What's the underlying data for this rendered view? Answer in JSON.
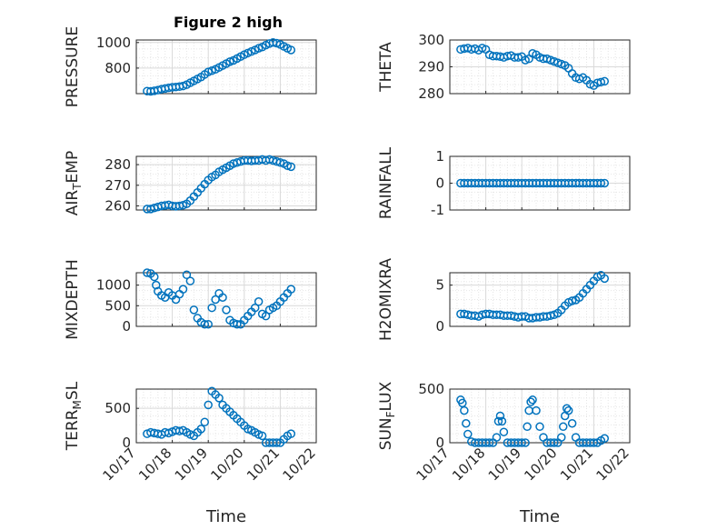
{
  "figure_title": "Figure 2 high",
  "colors": {
    "marker": "#0072BD",
    "axis": "#262626",
    "grid": "#d9d9d9",
    "minor_grid": "#e6e6e6"
  },
  "chart_data": [
    {
      "type": "scatter",
      "ylabel": "PRESSURE",
      "yticks": [
        800,
        1000
      ],
      "ytick_labels": [
        "800",
        "1000"
      ],
      "ylim": [
        600,
        1020
      ],
      "x_tick_labels": [],
      "x": [
        17.3,
        17.4,
        17.5,
        17.6,
        17.7,
        17.8,
        17.9,
        18.0,
        18.1,
        18.2,
        18.3,
        18.4,
        18.5,
        18.6,
        18.7,
        18.8,
        18.9,
        19.0,
        19.1,
        19.2,
        19.3,
        19.4,
        19.5,
        19.6,
        19.7,
        19.8,
        19.9,
        20.0,
        20.1,
        20.2,
        20.3,
        20.4,
        20.5,
        20.6,
        20.7,
        20.8,
        20.9,
        21.0,
        21.1,
        21.2,
        21.3
      ],
      "y": [
        620,
        618,
        622,
        628,
        635,
        640,
        645,
        650,
        652,
        655,
        660,
        670,
        685,
        700,
        715,
        730,
        750,
        770,
        780,
        790,
        805,
        820,
        835,
        850,
        860,
        875,
        890,
        905,
        918,
        930,
        942,
        955,
        965,
        980,
        992,
        1000,
        995,
        985,
        970,
        955,
        942
      ]
    },
    {
      "type": "scatter",
      "ylabel": "THETA",
      "yticks": [
        280,
        290,
        300
      ],
      "ytick_labels": [
        "280",
        "290",
        "300"
      ],
      "ylim": [
        280,
        300
      ],
      "x_tick_labels": [],
      "x": [
        17.3,
        17.4,
        17.5,
        17.6,
        17.7,
        17.8,
        17.9,
        18.0,
        18.1,
        18.2,
        18.3,
        18.4,
        18.5,
        18.6,
        18.7,
        18.8,
        18.9,
        19.0,
        19.1,
        19.2,
        19.3,
        19.4,
        19.5,
        19.6,
        19.7,
        19.8,
        19.9,
        20.0,
        20.1,
        20.2,
        20.3,
        20.4,
        20.5,
        20.6,
        20.7,
        20.8,
        20.9,
        21.0,
        21.1,
        21.2,
        21.3
      ],
      "y": [
        296.5,
        296.8,
        297.0,
        296.5,
        296.8,
        296.2,
        297.0,
        296.5,
        294.5,
        294.0,
        294.0,
        293.8,
        293.5,
        294.0,
        294.2,
        293.5,
        293.5,
        293.8,
        292.5,
        293.0,
        295.0,
        294.5,
        293.5,
        293.0,
        293.0,
        292.5,
        292.0,
        291.5,
        291.0,
        290.5,
        289.5,
        287.5,
        286.0,
        285.5,
        286.0,
        285.0,
        283.5,
        283.0,
        284.0,
        284.3,
        284.6
      ]
    },
    {
      "type": "scatter",
      "ylabel": "AIR_TEMP",
      "yticks": [
        260,
        270,
        280
      ],
      "ytick_labels": [
        "260",
        "270",
        "280"
      ],
      "ylim": [
        258,
        284
      ],
      "x_tick_labels": [],
      "x": [
        17.3,
        17.4,
        17.5,
        17.6,
        17.7,
        17.8,
        17.9,
        18.0,
        18.1,
        18.2,
        18.3,
        18.4,
        18.5,
        18.6,
        18.7,
        18.8,
        18.9,
        19.0,
        19.1,
        19.2,
        19.3,
        19.4,
        19.5,
        19.6,
        19.7,
        19.8,
        19.9,
        20.0,
        20.1,
        20.2,
        20.3,
        20.4,
        20.5,
        20.6,
        20.7,
        20.8,
        20.9,
        21.0,
        21.1,
        21.2,
        21.3
      ],
      "y": [
        258.5,
        258.5,
        259.0,
        259.5,
        260.0,
        260.2,
        260.5,
        260.0,
        259.8,
        260.0,
        260.3,
        261.0,
        262.5,
        264.5,
        266.5,
        268.5,
        270.5,
        272.5,
        274.0,
        275.0,
        276.5,
        277.5,
        278.5,
        279.5,
        280.5,
        281.0,
        281.5,
        282.0,
        282.0,
        281.8,
        282.0,
        282.0,
        282.5,
        282.0,
        282.5,
        282.0,
        281.5,
        281.0,
        280.5,
        279.5,
        279.0
      ]
    },
    {
      "type": "scatter",
      "ylabel": "RAINFALL",
      "yticks": [
        -1,
        0,
        1
      ],
      "ytick_labels": [
        "-1",
        "0",
        "1"
      ],
      "ylim": [
        -1,
        1
      ],
      "x_tick_labels": [],
      "x": [
        17.3,
        17.4,
        17.5,
        17.6,
        17.7,
        17.8,
        17.9,
        18.0,
        18.1,
        18.2,
        18.3,
        18.4,
        18.5,
        18.6,
        18.7,
        18.8,
        18.9,
        19.0,
        19.1,
        19.2,
        19.3,
        19.4,
        19.5,
        19.6,
        19.7,
        19.8,
        19.9,
        20.0,
        20.1,
        20.2,
        20.3,
        20.4,
        20.5,
        20.6,
        20.7,
        20.8,
        20.9,
        21.0,
        21.1,
        21.2,
        21.3
      ],
      "y": [
        0,
        0,
        0,
        0,
        0,
        0,
        0,
        0,
        0,
        0,
        0,
        0,
        0,
        0,
        0,
        0,
        0,
        0,
        0,
        0,
        0,
        0,
        0,
        0,
        0,
        0,
        0,
        0,
        0,
        0,
        0,
        0,
        0,
        0,
        0,
        0,
        0,
        0,
        0,
        0,
        0
      ]
    },
    {
      "type": "scatter",
      "ylabel": "MIXDEPTH",
      "yticks": [
        0,
        500,
        1000
      ],
      "ytick_labels": [
        "0",
        "500",
        "1000"
      ],
      "ylim": [
        0,
        1300
      ],
      "x_tick_labels": [],
      "x": [
        17.3,
        17.4,
        17.5,
        17.55,
        17.6,
        17.7,
        17.8,
        17.9,
        18.0,
        18.1,
        18.2,
        18.3,
        18.4,
        18.5,
        18.6,
        18.7,
        18.8,
        18.9,
        19.0,
        19.1,
        19.2,
        19.3,
        19.4,
        19.5,
        19.6,
        19.7,
        19.8,
        19.9,
        20.0,
        20.1,
        20.2,
        20.3,
        20.4,
        20.5,
        20.6,
        20.7,
        20.8,
        20.9,
        21.0,
        21.1,
        21.2,
        21.3
      ],
      "y": [
        1300,
        1280,
        1200,
        1000,
        850,
        750,
        700,
        820,
        750,
        650,
        780,
        900,
        1250,
        1100,
        400,
        200,
        100,
        50,
        50,
        450,
        650,
        800,
        700,
        400,
        150,
        80,
        50,
        50,
        150,
        250,
        350,
        450,
        600,
        300,
        250,
        400,
        450,
        500,
        600,
        700,
        800,
        900
      ]
    },
    {
      "type": "scatter",
      "ylabel": "H2OMIXRA",
      "yticks": [
        0,
        5
      ],
      "ytick_labels": [
        "0",
        "5"
      ],
      "ylim": [
        0,
        6.5
      ],
      "x_tick_labels": [],
      "x": [
        17.3,
        17.4,
        17.5,
        17.6,
        17.7,
        17.8,
        17.9,
        18.0,
        18.1,
        18.2,
        18.3,
        18.4,
        18.5,
        18.6,
        18.7,
        18.8,
        18.9,
        19.0,
        19.1,
        19.2,
        19.3,
        19.4,
        19.5,
        19.6,
        19.7,
        19.8,
        19.9,
        20.0,
        20.1,
        20.2,
        20.3,
        20.4,
        20.5,
        20.6,
        20.7,
        20.8,
        20.9,
        21.0,
        21.1,
        21.2,
        21.3
      ],
      "y": [
        1.5,
        1.5,
        1.4,
        1.3,
        1.3,
        1.2,
        1.4,
        1.5,
        1.5,
        1.4,
        1.4,
        1.4,
        1.3,
        1.3,
        1.3,
        1.2,
        1.1,
        1.2,
        1.2,
        1.0,
        1.0,
        1.1,
        1.1,
        1.2,
        1.2,
        1.3,
        1.4,
        1.6,
        2.0,
        2.5,
        2.9,
        3.1,
        3.2,
        3.5,
        4.0,
        4.5,
        5.0,
        5.5,
        6.0,
        6.2,
        5.8
      ]
    },
    {
      "type": "scatter",
      "ylabel": "TERR_MSL",
      "yticks": [
        0,
        500
      ],
      "ytick_labels": [
        "0",
        "500"
      ],
      "ylim": [
        0,
        780
      ],
      "x_tick_labels": [
        "10/17",
        "10/18",
        "10/19",
        "10/20",
        "10/21",
        "10/22"
      ],
      "xlabel": "Time",
      "x": [
        17.3,
        17.4,
        17.5,
        17.6,
        17.7,
        17.8,
        17.9,
        18.0,
        18.1,
        18.2,
        18.3,
        18.4,
        18.5,
        18.6,
        18.7,
        18.8,
        18.9,
        19.0,
        19.1,
        19.2,
        19.3,
        19.4,
        19.5,
        19.6,
        19.7,
        19.8,
        19.9,
        20.0,
        20.1,
        20.2,
        20.3,
        20.4,
        20.5,
        20.6,
        20.7,
        20.8,
        20.9,
        21.0,
        21.1,
        21.2,
        21.3
      ],
      "y": [
        130,
        150,
        140,
        130,
        120,
        150,
        140,
        160,
        180,
        170,
        180,
        150,
        120,
        100,
        150,
        200,
        300,
        550,
        750,
        700,
        650,
        550,
        500,
        450,
        400,
        350,
        300,
        250,
        200,
        180,
        150,
        120,
        100,
        0,
        0,
        0,
        0,
        0,
        50,
        100,
        130
      ]
    },
    {
      "type": "scatter",
      "ylabel": "SUN_FLUX",
      "yticks": [
        0,
        500
      ],
      "ytick_labels": [
        "0",
        "500"
      ],
      "ylim": [
        0,
        500
      ],
      "x_tick_labels": [
        "10/17",
        "10/18",
        "10/19",
        "10/20",
        "10/21",
        "10/22"
      ],
      "xlabel": "Time",
      "x": [
        17.3,
        17.35,
        17.4,
        17.45,
        17.5,
        17.6,
        17.7,
        17.8,
        17.9,
        18.0,
        18.1,
        18.2,
        18.3,
        18.35,
        18.4,
        18.45,
        18.5,
        18.6,
        18.7,
        18.8,
        18.9,
        19.0,
        19.1,
        19.15,
        19.2,
        19.25,
        19.3,
        19.4,
        19.5,
        19.6,
        19.7,
        19.8,
        19.9,
        20.0,
        20.1,
        20.15,
        20.2,
        20.25,
        20.3,
        20.4,
        20.5,
        20.6,
        20.7,
        20.8,
        20.9,
        21.0,
        21.1,
        21.2,
        21.3
      ],
      "y": [
        400,
        370,
        300,
        180,
        80,
        10,
        0,
        0,
        0,
        0,
        0,
        0,
        50,
        200,
        250,
        200,
        100,
        0,
        0,
        0,
        0,
        0,
        0,
        150,
        300,
        380,
        400,
        300,
        150,
        50,
        0,
        0,
        0,
        0,
        50,
        150,
        250,
        320,
        300,
        180,
        50,
        0,
        0,
        0,
        0,
        0,
        0,
        20,
        40
      ]
    }
  ]
}
